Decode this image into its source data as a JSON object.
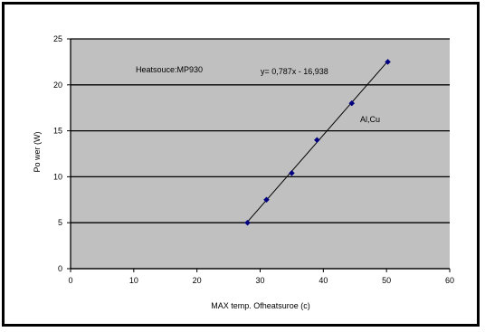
{
  "chart_data": {
    "type": "scatter",
    "title": "",
    "xlabel": "MAX temp. Ofheatsuroe (c)",
    "ylabel": "Po wer (W)",
    "xlim": [
      0,
      60
    ],
    "ylim": [
      0,
      25
    ],
    "xticks": [
      "0",
      "10",
      "20",
      "30",
      "40",
      "50",
      "60"
    ],
    "yticks": [
      "0",
      "5",
      "10",
      "15",
      "20",
      "25"
    ],
    "grid": "horizontal",
    "plot_bg": "#c0c0c0",
    "point_color": "#000080",
    "series": [
      {
        "name": "Al,Cu",
        "x": [
          28,
          31,
          35,
          39,
          44.5,
          50.2
        ],
        "y": [
          5.0,
          7.5,
          10.4,
          14.0,
          18.0,
          22.5
        ]
      }
    ],
    "trendline": {
      "slope": 0.787,
      "intercept": -16.938,
      "x_range": [
        28,
        50.2
      ]
    },
    "annotations": {
      "heat_source": "Heatsouce:MP930",
      "equation": "y= 0,787x - 16,938",
      "series_label": "Al,Cu"
    }
  }
}
